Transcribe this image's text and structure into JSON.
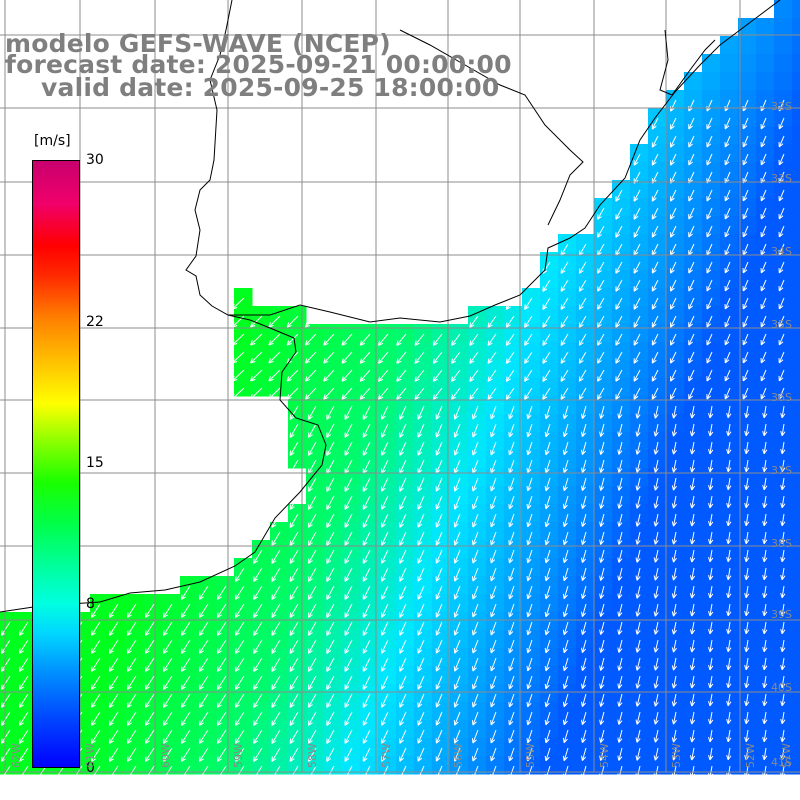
{
  "header": {
    "title_line1": "modelo GEFS-WAVE (NCEP)",
    "title_line2": "forecast date: 2025-09-21 00:00:00",
    "title_line3": "valid date: 2025-09-25 18:00:00"
  },
  "colorbar": {
    "unit": "[m/s]",
    "ticks": [
      "30",
      "22",
      "15",
      "8",
      "0"
    ],
    "tick_values": [
      30,
      22,
      15,
      8,
      0
    ]
  },
  "axes": {
    "lat_labels": [
      "32S",
      "33S",
      "34S",
      "35S",
      "36S",
      "37S",
      "38S",
      "39S",
      "40S",
      "41S"
    ],
    "lon_labels": [
      "62W",
      "61W",
      "60W",
      "59W",
      "58W",
      "57W",
      "56W",
      "55W",
      "54W",
      "53W",
      "52W",
      "51W"
    ]
  },
  "colors": {
    "ocean_low": "#0050ff",
    "ocean_mid": "#00e6ff",
    "ocean_high": "#00ff20",
    "coast": "#000000",
    "grid": "#8c8c8c",
    "title": "#7f7f7f"
  }
}
